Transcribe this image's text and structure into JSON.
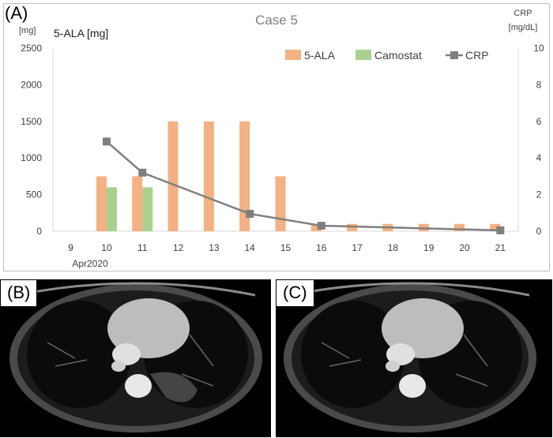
{
  "panels": {
    "a_label": "(A)",
    "b_label": "(B)",
    "c_label": "(C)"
  },
  "colors": {
    "ala": "#F4B183",
    "camostat": "#A9D18E",
    "crp": "#7F7F7F"
  },
  "chart_data": {
    "type": "bar",
    "title": "Case 5",
    "left_unit": "[mg]",
    "left_axis_title": "5-ALA  [mg]",
    "right_unit_line1": "CRP",
    "right_unit_line2": "[mg/dL]",
    "x_sublabel": "Apr2020",
    "categories": [
      "9",
      "10",
      "11",
      "12",
      "13",
      "14",
      "15",
      "16",
      "17",
      "18",
      "19",
      "20",
      "21"
    ],
    "ylim_left": [
      0,
      2500
    ],
    "yticks_left": [
      0,
      500,
      1000,
      1500,
      2000,
      2500
    ],
    "ylim_right": [
      0,
      10
    ],
    "yticks_right": [
      0,
      2,
      4,
      6,
      8,
      10
    ],
    "legend_position": "top-right",
    "grid": false,
    "series": [
      {
        "name": "5-ALA",
        "type": "bar",
        "axis": "left",
        "values": [
          0,
          750,
          750,
          1500,
          1500,
          1500,
          750,
          100,
          100,
          100,
          100,
          100,
          100
        ]
      },
      {
        "name": "Camostat",
        "type": "bar",
        "axis": "left",
        "values": [
          0,
          600,
          600,
          0,
          0,
          0,
          0,
          0,
          0,
          0,
          0,
          0,
          0
        ]
      },
      {
        "name": "CRP",
        "type": "line",
        "axis": "right",
        "values": [
          null,
          4.9,
          3.2,
          null,
          null,
          0.95,
          null,
          0.3,
          null,
          null,
          null,
          null,
          0.05
        ]
      }
    ]
  }
}
